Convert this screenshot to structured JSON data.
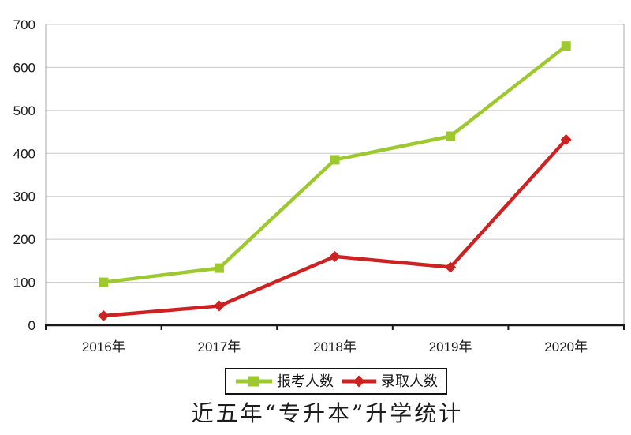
{
  "page": {
    "background": "#ffffff"
  },
  "title": {
    "text": "近五年“专升本”升学统计"
  },
  "chart_data": {
    "type": "line",
    "categories": [
      "2016年",
      "2017年",
      "2018年",
      "2019年",
      "2020年"
    ],
    "series": [
      {
        "name": "报考人数",
        "color": "#9dc92f",
        "marker": "square",
        "values": [
          100,
          133,
          385,
          440,
          650
        ]
      },
      {
        "name": "录取人数",
        "color": "#ce2121",
        "marker": "diamond",
        "values": [
          22,
          45,
          160,
          135,
          432
        ]
      }
    ],
    "title": "近五年“专升本”升学统计",
    "xlabel": "",
    "ylabel": "",
    "ylim": [
      0,
      700
    ],
    "yticks": [
      0,
      100,
      200,
      300,
      400,
      500,
      600,
      700
    ],
    "grid": "horizontal",
    "legend_position": "bottom",
    "axis_color": "#1a1a1a",
    "grid_color": "#c8c8c8",
    "plot_border_color": "#ababab",
    "label_color": "#1a1a1a"
  }
}
